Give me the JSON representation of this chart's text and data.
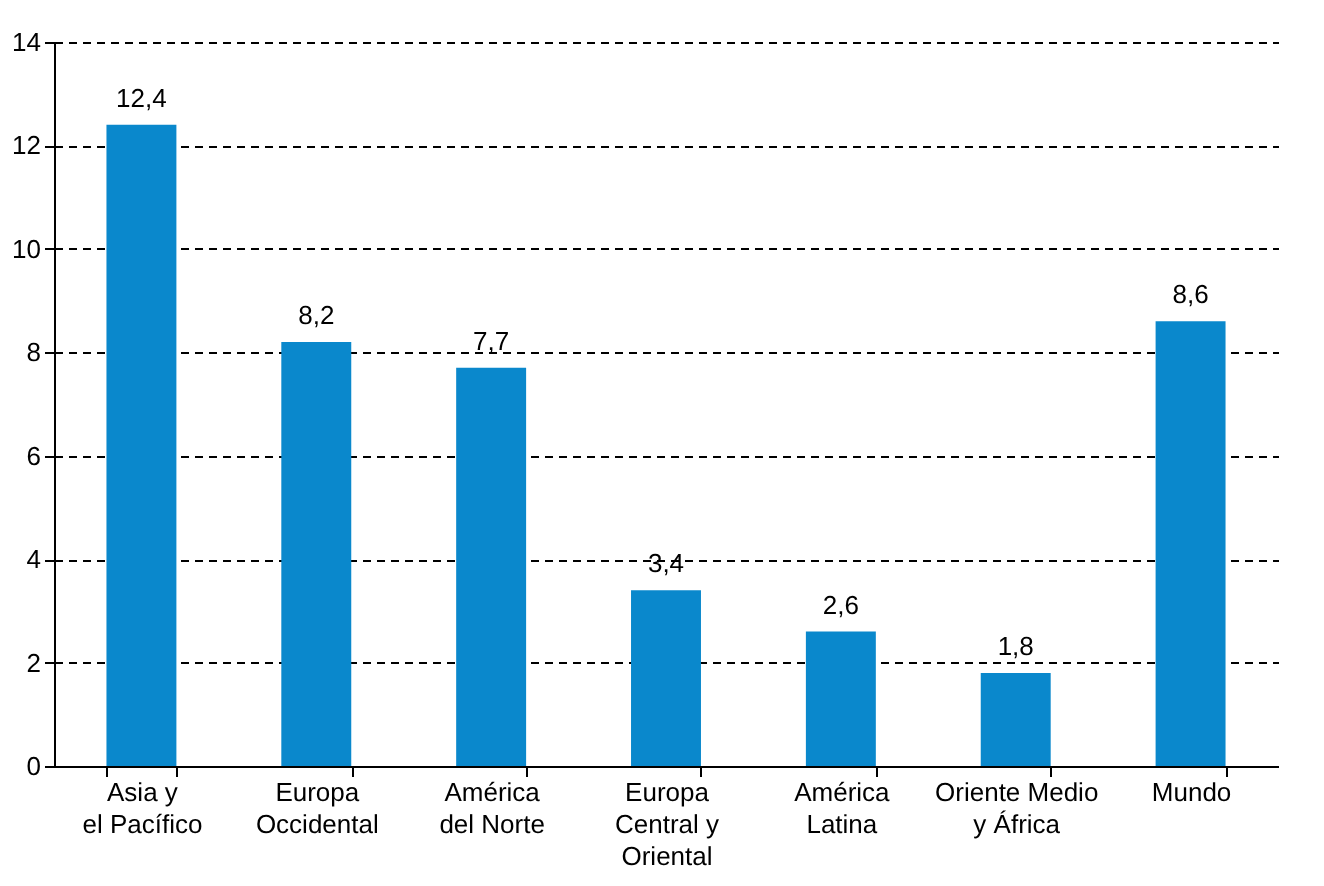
{
  "chart_data": {
    "type": "bar",
    "categories": [
      "Asia y\nel Pacífico",
      "Europa\nOccidental",
      "América\ndel Norte",
      "Europa\nCentral y\nOriental",
      "América\nLatina",
      "Oriente Medio\ny África",
      "Mundo"
    ],
    "values": [
      12.4,
      8.2,
      7.7,
      3.4,
      2.6,
      1.8,
      8.6
    ],
    "value_labels": [
      "12,4",
      "8,2",
      "7,7",
      "3,4",
      "2,6",
      "1,8",
      "8,6"
    ],
    "color": "#0a88cc",
    "ylim": [
      0,
      14
    ],
    "yticks": [
      0,
      2,
      4,
      6,
      8,
      10,
      12,
      14
    ],
    "grid": "y"
  }
}
